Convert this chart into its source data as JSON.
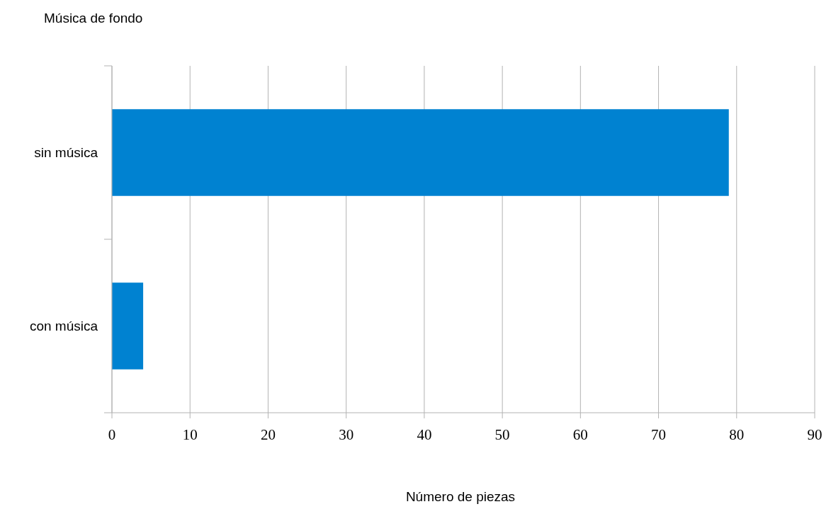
{
  "chart_data": {
    "type": "bar",
    "orientation": "horizontal",
    "ylabel": "Música de fondo",
    "xlabel": "Número de piezas",
    "categories": [
      "sin música",
      "con música"
    ],
    "values": [
      79,
      4
    ],
    "color": "#0082d1",
    "xlim": [
      0,
      90
    ],
    "xticks": [
      0,
      10,
      20,
      30,
      40,
      50,
      60,
      70,
      80,
      90
    ],
    "grid": "x"
  }
}
